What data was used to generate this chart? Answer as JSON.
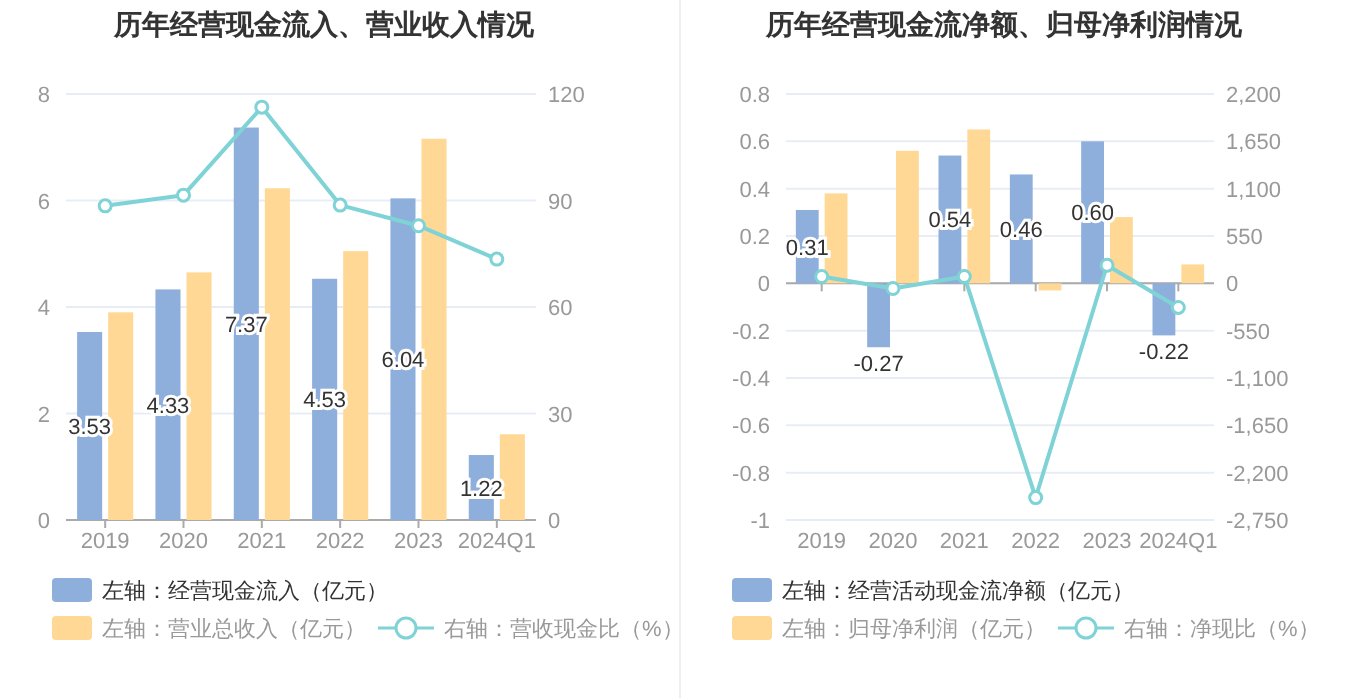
{
  "chart_data": [
    {
      "type": "bar",
      "title": "历年经营现金流入、营业收入情况",
      "categories": [
        "2019",
        "2020",
        "2021",
        "2022",
        "2023",
        "2024Q1"
      ],
      "series": [
        {
          "name": "左轴：经营现金流入（亿元）",
          "color": "#8eaedc",
          "values": [
            3.53,
            4.33,
            7.37,
            4.53,
            6.04,
            1.22
          ],
          "value_labels": [
            "3.53",
            "4.33",
            "7.37",
            "4.53",
            "6.04",
            "1.22"
          ]
        },
        {
          "name": "左轴：营业总收入（亿元）",
          "color": "#ffd896",
          "values": [
            3.9,
            4.65,
            6.23,
            5.05,
            7.16,
            1.61
          ]
        },
        {
          "name": "右轴：营收现金比（%）",
          "color": "#7fd3d6",
          "type": "line",
          "axis": "y2",
          "marker": "circle",
          "values": [
            88.5,
            91.5,
            116.3,
            88.7,
            82.9,
            73.5
          ]
        }
      ],
      "ylim": [
        0,
        8
      ],
      "yticks": [
        0,
        2,
        4,
        6,
        8
      ],
      "y2lim": [
        0,
        120
      ],
      "y2ticks": [
        0,
        30,
        60,
        90,
        120
      ],
      "grid": "y",
      "legend": "bottom"
    },
    {
      "type": "bar",
      "title": "历年经营现金流净额、归母净利润情况",
      "categories": [
        "2019",
        "2020",
        "2021",
        "2022",
        "2023",
        "2024Q1"
      ],
      "series": [
        {
          "name": "左轴：经营活动现金流净额（亿元）",
          "color": "#8eaedc",
          "values": [
            0.31,
            -0.27,
            0.54,
            0.46,
            0.6,
            -0.22
          ],
          "value_labels": [
            "0.31",
            "-0.27",
            "0.54",
            "0.46",
            "0.60",
            "-0.22"
          ]
        },
        {
          "name": "左轴：归母净利润（亿元）",
          "color": "#ffd896",
          "values": [
            0.38,
            0.56,
            0.65,
            -0.03,
            0.28,
            0.08
          ]
        },
        {
          "name": "右轴：净现比（%）",
          "color": "#7fd3d6",
          "type": "line",
          "axis": "y2",
          "marker": "circle",
          "values": [
            80,
            -60,
            80,
            -2490,
            210,
            -280
          ]
        }
      ],
      "ylim": [
        -1,
        0.8
      ],
      "yticks": [
        -1,
        -0.8,
        -0.6,
        -0.4,
        -0.2,
        0,
        0.2,
        0.4,
        0.6,
        0.8
      ],
      "y2lim": [
        -2750,
        2200
      ],
      "y2ticks": [
        {
          "value": -2750,
          "label": "-2,750"
        },
        {
          "value": -2200,
          "label": "-2,200"
        },
        {
          "value": -1650,
          "label": "-1,650"
        },
        {
          "value": -1100,
          "label": "-1,100"
        },
        {
          "value": -550,
          "label": "-550"
        },
        0,
        {
          "value": 550,
          "label": "550"
        },
        {
          "value": 1100,
          "label": "1,100"
        },
        {
          "value": 1650,
          "label": "1,650"
        },
        {
          "value": 2200,
          "label": "2,200"
        }
      ],
      "grid": "y",
      "legend": "bottom"
    }
  ]
}
